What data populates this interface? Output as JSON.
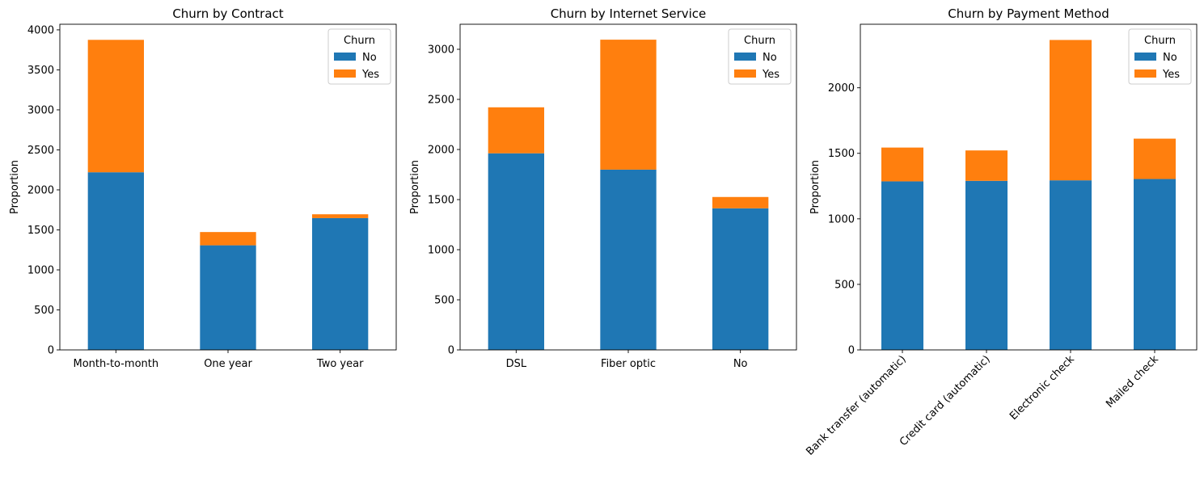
{
  "colors": {
    "no": "#1f77b4",
    "yes": "#ff7f0e"
  },
  "chart_data": [
    {
      "type": "bar",
      "stacked": true,
      "title": "Churn by Contract",
      "xlabel": "",
      "ylabel": "Proportion",
      "categories": [
        "Month-to-month",
        "One year",
        "Two year"
      ],
      "series": [
        {
          "name": "No",
          "values": [
            2220,
            1307,
            1647
          ]
        },
        {
          "name": "Yes",
          "values": [
            1655,
            166,
            48
          ]
        }
      ],
      "ylim": [
        0,
        4070
      ],
      "yticks": [
        0,
        500,
        1000,
        1500,
        2000,
        2500,
        3000,
        3500,
        4000
      ],
      "legend": {
        "title": "Churn",
        "placement": "top-right"
      },
      "xtick_rotation": 0,
      "grid": false
    },
    {
      "type": "bar",
      "stacked": true,
      "title": "Churn by Internet Service",
      "xlabel": "",
      "ylabel": "Proportion",
      "categories": [
        "DSL",
        "Fiber optic",
        "No"
      ],
      "series": [
        {
          "name": "No",
          "values": [
            1962,
            1799,
            1413
          ]
        },
        {
          "name": "Yes",
          "values": [
            459,
            1297,
            113
          ]
        }
      ],
      "ylim": [
        0,
        3250
      ],
      "yticks": [
        0,
        500,
        1000,
        1500,
        2000,
        2500,
        3000
      ],
      "legend": {
        "title": "Churn",
        "placement": "top-right"
      },
      "xtick_rotation": 0,
      "grid": false
    },
    {
      "type": "bar",
      "stacked": true,
      "title": "Churn by Payment Method",
      "xlabel": "",
      "ylabel": "Proportion",
      "categories": [
        "Bank transfer (automatic)",
        "Credit card (automatic)",
        "Electronic check",
        "Mailed check"
      ],
      "series": [
        {
          "name": "No",
          "values": [
            1286,
            1290,
            1294,
            1304
          ]
        },
        {
          "name": "Yes",
          "values": [
            258,
            232,
            1071,
            308
          ]
        }
      ],
      "ylim": [
        0,
        2485
      ],
      "yticks": [
        0,
        500,
        1000,
        1500,
        2000
      ],
      "legend": {
        "title": "Churn",
        "placement": "top-right"
      },
      "xtick_rotation": -45,
      "grid": false
    }
  ]
}
